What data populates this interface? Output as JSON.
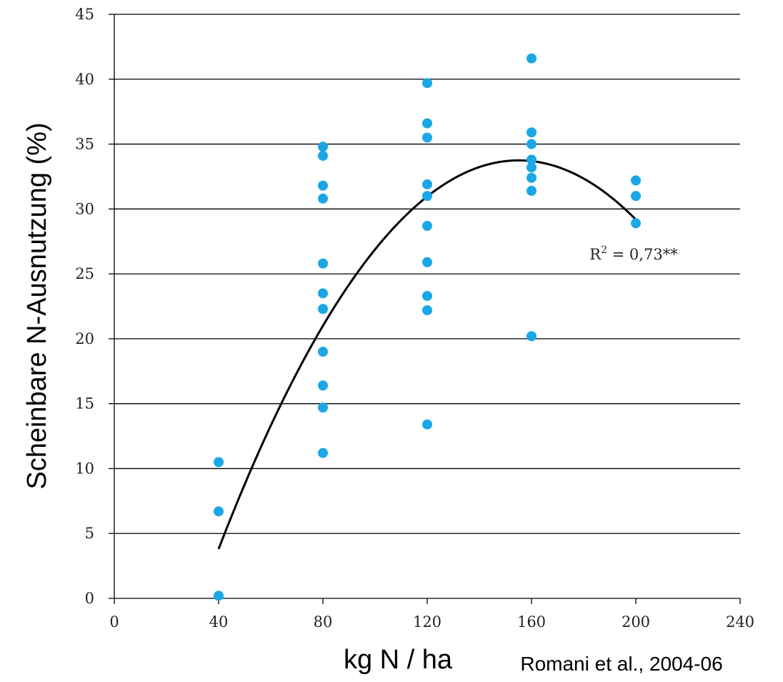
{
  "chart_data": {
    "type": "scatter",
    "xlabel": "kg N / ha",
    "ylabel": "Scheinbare N-Ausnutzung (%)",
    "xlim": [
      0,
      240
    ],
    "ylim": [
      0,
      45
    ],
    "x_ticks": [
      0,
      40,
      80,
      120,
      160,
      200,
      240
    ],
    "y_ticks": [
      0,
      5,
      10,
      15,
      20,
      25,
      30,
      35,
      40,
      45
    ],
    "grid": "horizontal",
    "marker_color": "#1aa7e6",
    "trend_color": "#000000",
    "points": [
      {
        "x": 40,
        "y": 10.5
      },
      {
        "x": 40,
        "y": 6.7
      },
      {
        "x": 40,
        "y": 0.2
      },
      {
        "x": 80,
        "y": 34.8
      },
      {
        "x": 80,
        "y": 34.1
      },
      {
        "x": 80,
        "y": 31.8
      },
      {
        "x": 80,
        "y": 30.8
      },
      {
        "x": 80,
        "y": 25.8
      },
      {
        "x": 80,
        "y": 23.5
      },
      {
        "x": 80,
        "y": 22.3
      },
      {
        "x": 80,
        "y": 19.0
      },
      {
        "x": 80,
        "y": 16.4
      },
      {
        "x": 80,
        "y": 14.7
      },
      {
        "x": 80,
        "y": 11.2
      },
      {
        "x": 120,
        "y": 39.7
      },
      {
        "x": 120,
        "y": 36.6
      },
      {
        "x": 120,
        "y": 35.5
      },
      {
        "x": 120,
        "y": 31.9
      },
      {
        "x": 120,
        "y": 31.0
      },
      {
        "x": 120,
        "y": 28.7
      },
      {
        "x": 120,
        "y": 25.9
      },
      {
        "x": 120,
        "y": 23.3
      },
      {
        "x": 120,
        "y": 22.2
      },
      {
        "x": 120,
        "y": 13.4
      },
      {
        "x": 160,
        "y": 41.6
      },
      {
        "x": 160,
        "y": 35.9
      },
      {
        "x": 160,
        "y": 35.0
      },
      {
        "x": 160,
        "y": 33.8
      },
      {
        "x": 160,
        "y": 33.2
      },
      {
        "x": 160,
        "y": 32.4
      },
      {
        "x": 160,
        "y": 31.4
      },
      {
        "x": 160,
        "y": 20.2
      },
      {
        "x": 200,
        "y": 32.2
      },
      {
        "x": 200,
        "y": 31.0
      },
      {
        "x": 200,
        "y": 28.9
      }
    ],
    "trendline": {
      "type": "quadratic",
      "x_range": [
        40,
        200
      ],
      "points": [
        {
          "x": 40,
          "y": 3.8
        },
        {
          "x": 80,
          "y": 21.0
        },
        {
          "x": 120,
          "y": 31.0
        },
        {
          "x": 155,
          "y": 33.7
        },
        {
          "x": 200,
          "y": 29.2
        }
      ]
    },
    "annotation": {
      "base": "R",
      "sup": "2",
      "rest": " = 0,73**",
      "x": 185,
      "y": 26.5
    },
    "source": "Romani et al., 2004-06"
  }
}
